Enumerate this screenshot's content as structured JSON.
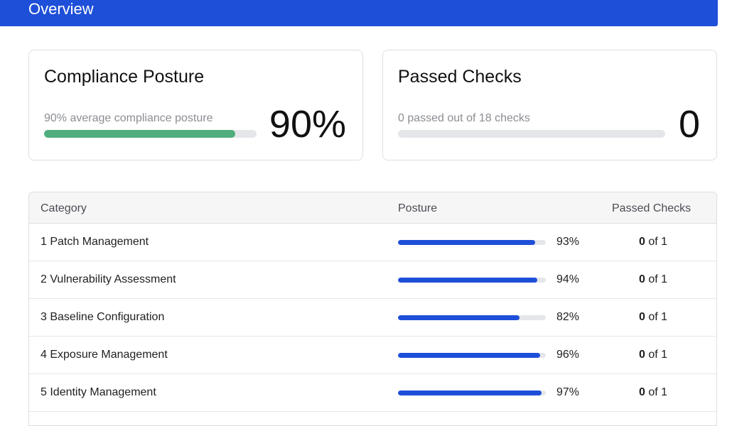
{
  "header": {
    "title": "Overview",
    "accent_color": "#1e4fd8"
  },
  "cards": [
    {
      "title": "Compliance Posture",
      "subtitle": "90% average compliance posture",
      "value": "90%",
      "progress_fraction": 0.9,
      "bar_color": "#4fae7c"
    },
    {
      "title": "Passed Checks",
      "subtitle": "0 passed out of 18 checks",
      "value": "0",
      "progress_fraction": 0,
      "bar_color": "#4fae7c"
    }
  ],
  "table": {
    "headers": {
      "category": "Category",
      "posture": "Posture",
      "passed": "Passed Checks"
    },
    "bar_color": "#1e4fd8",
    "rows": [
      {
        "category": "1 Patch Management",
        "posture_pct": "93%",
        "posture_fraction": 0.93,
        "passed_count": "0",
        "passed_suffix": " of 1"
      },
      {
        "category": "2 Vulnerability Assessment",
        "posture_pct": "94%",
        "posture_fraction": 0.94,
        "passed_count": "0",
        "passed_suffix": " of 1"
      },
      {
        "category": "3 Baseline Configuration",
        "posture_pct": "82%",
        "posture_fraction": 0.82,
        "passed_count": "0",
        "passed_suffix": " of 1"
      },
      {
        "category": "4 Exposure Management",
        "posture_pct": "96%",
        "posture_fraction": 0.96,
        "passed_count": "0",
        "passed_suffix": " of 1"
      },
      {
        "category": "5 Identity Management",
        "posture_pct": "97%",
        "posture_fraction": 0.97,
        "passed_count": "0",
        "passed_suffix": " of 1"
      }
    ]
  }
}
